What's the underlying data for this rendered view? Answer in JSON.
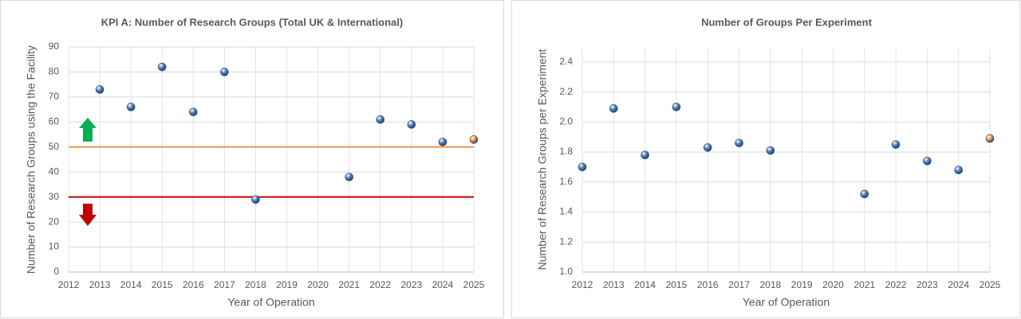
{
  "chart_data": [
    {
      "type": "scatter",
      "title": "KPI A: Number of Research Groups (Total UK & International)",
      "x_label": "Year of Operation",
      "y_label": "Number of Research Groups using the Facility",
      "xlim": [
        2012,
        2025
      ],
      "xticks": [
        2012,
        2013,
        2014,
        2015,
        2016,
        2017,
        2018,
        2019,
        2020,
        2021,
        2022,
        2023,
        2024,
        2025
      ],
      "ylim": [
        0,
        90
      ],
      "yticks": [
        0,
        10,
        20,
        30,
        40,
        50,
        60,
        70,
        80,
        90
      ],
      "grid": true,
      "series": [
        {
          "color": "#4f81bd",
          "x": [
            2013,
            2014,
            2015,
            2016,
            2017,
            2018,
            2021,
            2022,
            2023,
            2024
          ],
          "values": [
            73,
            66,
            82,
            64,
            80,
            29,
            38,
            61,
            59,
            52
          ]
        },
        {
          "color": "#f79646",
          "x": [
            2025
          ],
          "values": [
            53
          ]
        }
      ],
      "hlines": [
        {
          "value": 50,
          "color": "#f79646"
        },
        {
          "value": 30,
          "color": "#c00000"
        }
      ]
    },
    {
      "type": "scatter",
      "title": "Number of Groups Per Experiment",
      "x_label": "Year of Operation",
      "y_label": "Number of Research Groups per Experiment",
      "xlim": [
        2012,
        2025
      ],
      "xticks": [
        2012,
        2013,
        2014,
        2015,
        2016,
        2017,
        2018,
        2019,
        2020,
        2021,
        2022,
        2023,
        2024,
        2025
      ],
      "ylim": [
        1,
        2.5
      ],
      "yticks": [
        {
          "value": 1,
          "label": "1.0"
        },
        1.2,
        1.4,
        1.6,
        1.8,
        {
          "value": 2,
          "label": "2.0"
        },
        2.2,
        2.4
      ],
      "grid": true,
      "series": [
        {
          "color": "#4f81bd",
          "x": [
            2012,
            2013,
            2014,
            2015,
            2016,
            2017,
            2018,
            2021,
            2022,
            2023,
            2024
          ],
          "values": [
            1.7,
            2.09,
            1.78,
            2.1,
            1.83,
            1.86,
            1.81,
            1.52,
            1.85,
            1.74,
            1.68
          ]
        },
        {
          "color": "#f79646",
          "x": [
            2025
          ],
          "values": [
            1.89
          ]
        }
      ]
    }
  ]
}
